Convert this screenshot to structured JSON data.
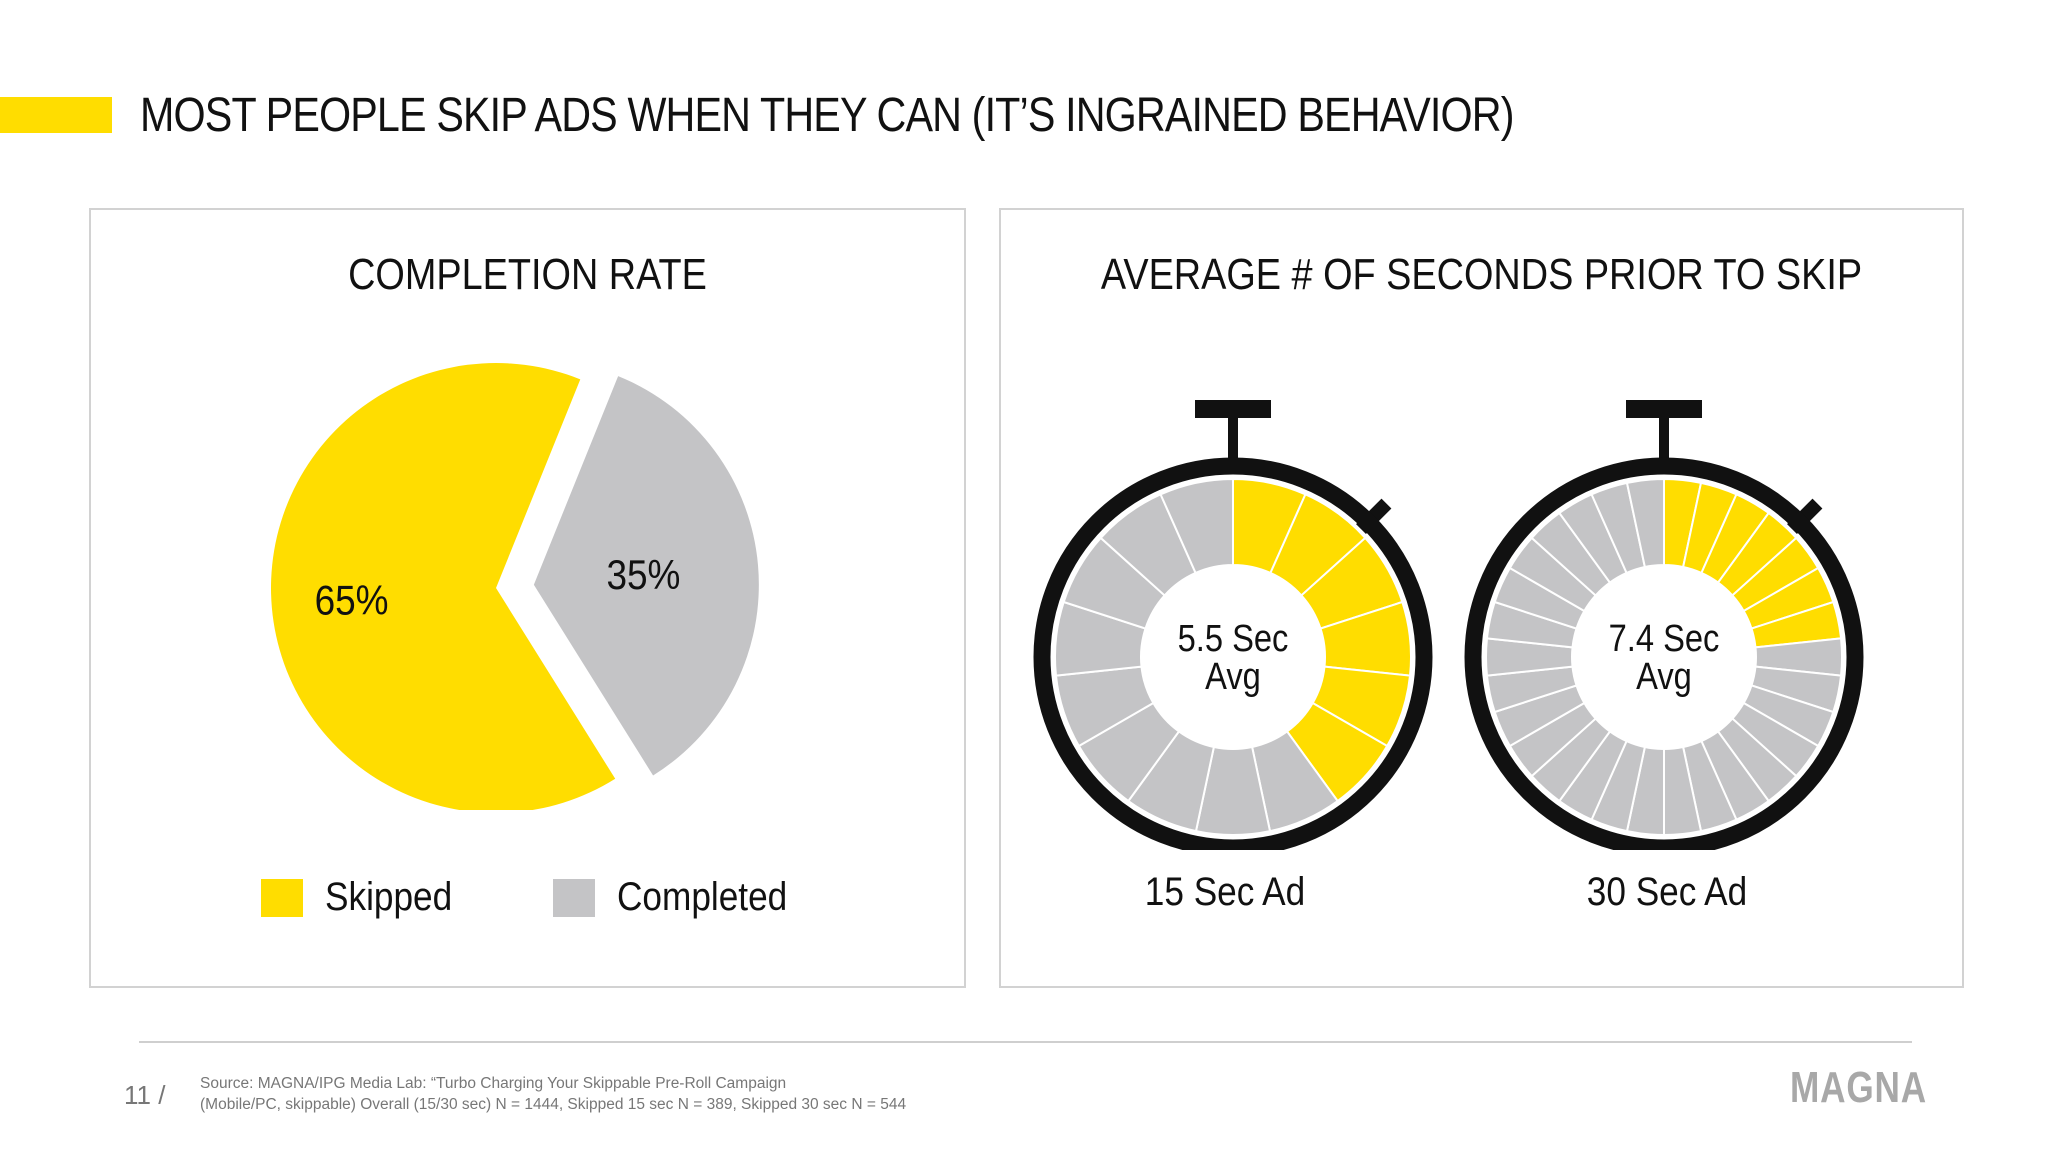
{
  "title": "MOST PEOPLE SKIP ADS WHEN THEY CAN (IT’S INGRAINED BEHAVIOR)",
  "colors": {
    "accent": "#FFDD00",
    "gray": "#C4C4C6",
    "ink": "#111111"
  },
  "chart_data": [
    {
      "type": "pie",
      "title": "COMPLETION RATE",
      "categories": [
        "Skipped",
        "Completed"
      ],
      "values": [
        65,
        35
      ],
      "labels": [
        "65%",
        "35%"
      ],
      "colors": [
        "#FFDD00",
        "#C4C4C6"
      ],
      "legend_position": "bottom"
    },
    {
      "type": "gauge",
      "title": "AVERAGE # OF SECONDS PRIOR TO SKIP",
      "series": [
        {
          "name": "15 Sec Ad",
          "ad_length_seconds": 15,
          "avg_seconds_before_skip": 5.5,
          "center_label": [
            "5.5 Sec",
            "Avg"
          ],
          "segments": 15
        },
        {
          "name": "30 Sec Ad",
          "ad_length_seconds": 30,
          "avg_seconds_before_skip": 7.4,
          "center_label": [
            "7.4 Sec",
            "Avg"
          ],
          "segments": 30
        }
      ]
    }
  ],
  "footer": {
    "page": "11 /",
    "source_line1": "Source: MAGNA/IPG Media Lab: “Turbo Charging Your Skippable Pre-Roll Campaign",
    "source_line2": "(Mobile/PC, skippable) Overall (15/30 sec) N = 1444, Skipped 15 sec N = 389, Skipped 30 sec N = 544",
    "logo": "MAGNA"
  }
}
